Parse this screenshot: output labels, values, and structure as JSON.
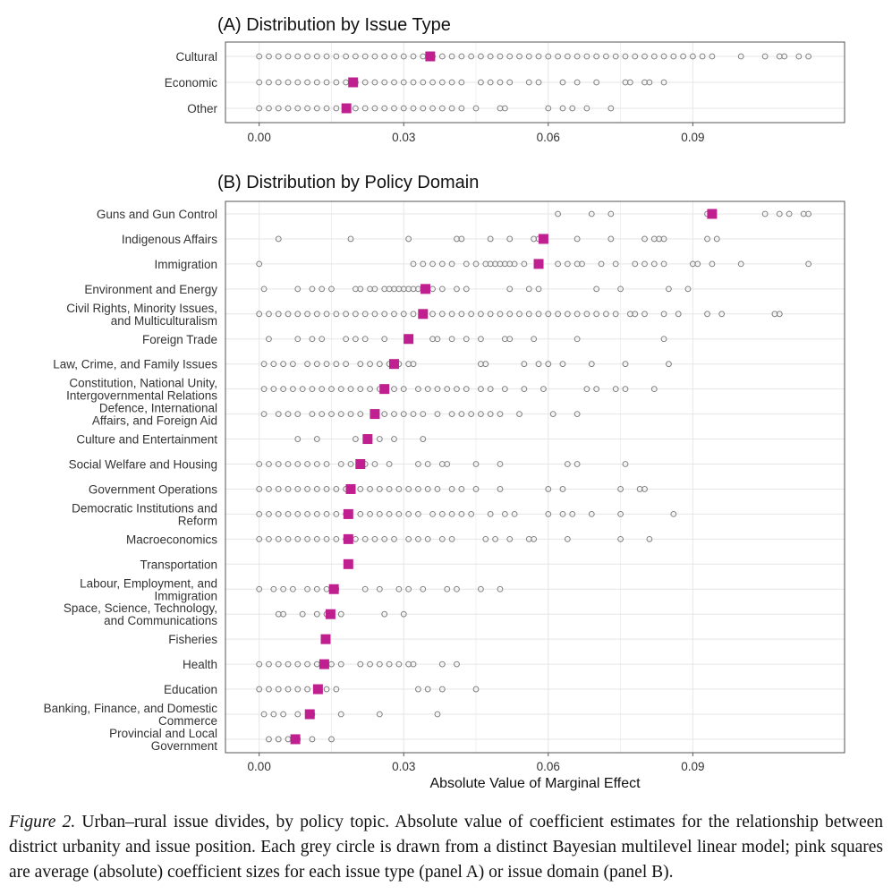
{
  "colors": {
    "mean_marker": "#c0208f",
    "point_stroke": "#7f7f7f",
    "panel_border": "#555555",
    "grid": "#e6e6e6",
    "text": "#333333"
  },
  "chart_data": [
    {
      "panel": "A",
      "type": "scatter",
      "title": "(A) Distribution by Issue Type",
      "xlabel": "",
      "ylabel": "",
      "xlim": [
        -0.007,
        0.1215
      ],
      "xticks": [
        "0.00",
        "0.03",
        "0.06",
        "0.09"
      ],
      "xtick_values": [
        0,
        0.03,
        0.06,
        0.09
      ],
      "grid": true,
      "categories": [
        "Cultural",
        "Economic",
        "Other"
      ],
      "series": [
        {
          "category": "Cultural",
          "mean": 0.0355,
          "points": [
            0.0,
            0.002,
            0.004,
            0.006,
            0.008,
            0.01,
            0.012,
            0.014,
            0.016,
            0.018,
            0.02,
            0.022,
            0.024,
            0.026,
            0.028,
            0.03,
            0.032,
            0.034,
            0.036,
            0.038,
            0.04,
            0.042,
            0.044,
            0.046,
            0.048,
            0.05,
            0.052,
            0.054,
            0.056,
            0.058,
            0.06,
            0.062,
            0.064,
            0.066,
            0.068,
            0.07,
            0.072,
            0.074,
            0.076,
            0.078,
            0.08,
            0.082,
            0.084,
            0.086,
            0.088,
            0.09,
            0.092,
            0.094,
            0.1,
            0.105,
            0.108,
            0.109,
            0.112,
            0.114
          ]
        },
        {
          "category": "Economic",
          "mean": 0.0195,
          "points": [
            0.0,
            0.002,
            0.004,
            0.006,
            0.008,
            0.01,
            0.012,
            0.014,
            0.016,
            0.018,
            0.02,
            0.022,
            0.024,
            0.026,
            0.028,
            0.03,
            0.032,
            0.034,
            0.036,
            0.038,
            0.04,
            0.042,
            0.046,
            0.048,
            0.05,
            0.052,
            0.056,
            0.058,
            0.063,
            0.066,
            0.07,
            0.076,
            0.077,
            0.08,
            0.081,
            0.084
          ]
        },
        {
          "category": "Other",
          "mean": 0.0181,
          "points": [
            0.0,
            0.002,
            0.004,
            0.006,
            0.008,
            0.01,
            0.012,
            0.014,
            0.016,
            0.02,
            0.022,
            0.024,
            0.026,
            0.028,
            0.03,
            0.032,
            0.034,
            0.036,
            0.038,
            0.04,
            0.042,
            0.045,
            0.05,
            0.051,
            0.06,
            0.063,
            0.065,
            0.068,
            0.073
          ]
        }
      ]
    },
    {
      "panel": "B",
      "type": "scatter",
      "title": "(B) Distribution by Policy Domain",
      "xlabel": "Absolute Value of Marginal Effect",
      "ylabel": "",
      "xlim": [
        -0.007,
        0.1215
      ],
      "xticks": [
        "0.00",
        "0.03",
        "0.06",
        "0.09"
      ],
      "xtick_values": [
        0,
        0.03,
        0.06,
        0.09
      ],
      "grid": true,
      "categories": [
        "Guns and Gun Control",
        "Indigenous Affairs",
        "Immigration",
        "Environment and Energy",
        "Civil Rights, Minority Issues,\nand Multiculturalism",
        "Foreign Trade",
        "Law, Crime, and Family Issues",
        "Constitution, National Unity,\nIntergovernmental Relations",
        "Defence, International\nAffairs, and Foreign Aid",
        "Culture and Entertainment",
        "Social Welfare and Housing",
        "Government Operations",
        "Democratic Institutions and\nReform",
        "Macroeconomics",
        "Transportation",
        "Labour, Employment, and\nImmigration",
        "Space, Science, Technology,\nand Communications",
        "Fisheries",
        "Health",
        "Education",
        "Banking, Finance, and Domestic\nCommerce",
        "Provincial and Local\nGovernment"
      ],
      "series": [
        {
          "category": "Guns and Gun Control",
          "mean": 0.094,
          "points": [
            0.062,
            0.069,
            0.073,
            0.093,
            0.094,
            0.105,
            0.108,
            0.11,
            0.113,
            0.114
          ]
        },
        {
          "category": "Indigenous Affairs",
          "mean": 0.059,
          "points": [
            0.004,
            0.019,
            0.031,
            0.041,
            0.042,
            0.048,
            0.052,
            0.057,
            0.058,
            0.066,
            0.073,
            0.08,
            0.082,
            0.083,
            0.084,
            0.093,
            0.095
          ]
        },
        {
          "category": "Immigration",
          "mean": 0.058,
          "points": [
            0.0,
            0.032,
            0.034,
            0.036,
            0.038,
            0.04,
            0.043,
            0.045,
            0.047,
            0.048,
            0.049,
            0.05,
            0.051,
            0.052,
            0.053,
            0.055,
            0.058,
            0.062,
            0.064,
            0.066,
            0.067,
            0.071,
            0.074,
            0.078,
            0.08,
            0.082,
            0.084,
            0.09,
            0.091,
            0.094,
            0.1,
            0.114
          ]
        },
        {
          "category": "Environment and Energy",
          "mean": 0.0345,
          "points": [
            0.001,
            0.008,
            0.011,
            0.013,
            0.015,
            0.02,
            0.021,
            0.023,
            0.024,
            0.026,
            0.027,
            0.028,
            0.029,
            0.03,
            0.031,
            0.032,
            0.033,
            0.034,
            0.036,
            0.038,
            0.041,
            0.043,
            0.052,
            0.056,
            0.058,
            0.07,
            0.075,
            0.085,
            0.089
          ]
        },
        {
          "category": "Civil Rights, Minority Issues,\nand Multiculturalism",
          "mean": 0.034,
          "points": [
            0.0,
            0.002,
            0.004,
            0.006,
            0.008,
            0.01,
            0.012,
            0.014,
            0.016,
            0.018,
            0.02,
            0.022,
            0.024,
            0.026,
            0.028,
            0.03,
            0.032,
            0.034,
            0.036,
            0.038,
            0.04,
            0.042,
            0.044,
            0.046,
            0.048,
            0.05,
            0.052,
            0.054,
            0.056,
            0.058,
            0.06,
            0.062,
            0.064,
            0.066,
            0.068,
            0.07,
            0.072,
            0.074,
            0.077,
            0.078,
            0.08,
            0.084,
            0.087,
            0.093,
            0.096,
            0.107,
            0.108
          ]
        },
        {
          "category": "Foreign Trade",
          "mean": 0.031,
          "points": [
            0.002,
            0.008,
            0.011,
            0.013,
            0.018,
            0.02,
            0.022,
            0.026,
            0.036,
            0.037,
            0.04,
            0.043,
            0.046,
            0.051,
            0.052,
            0.057,
            0.066,
            0.084
          ]
        },
        {
          "category": "Law, Crime, and Family Issues",
          "mean": 0.028,
          "points": [
            0.001,
            0.003,
            0.005,
            0.007,
            0.01,
            0.012,
            0.014,
            0.016,
            0.018,
            0.021,
            0.023,
            0.025,
            0.027,
            0.029,
            0.031,
            0.032,
            0.046,
            0.047,
            0.055,
            0.058,
            0.06,
            0.063,
            0.069,
            0.076,
            0.085
          ]
        },
        {
          "category": "Constitution, National Unity,\nIntergovernmental Relations",
          "mean": 0.026,
          "points": [
            0.001,
            0.003,
            0.005,
            0.007,
            0.009,
            0.011,
            0.013,
            0.015,
            0.017,
            0.019,
            0.021,
            0.023,
            0.025,
            0.028,
            0.03,
            0.033,
            0.035,
            0.037,
            0.039,
            0.041,
            0.043,
            0.046,
            0.048,
            0.051,
            0.055,
            0.059,
            0.068,
            0.07,
            0.074,
            0.076,
            0.082
          ]
        },
        {
          "category": "Defence, International\nAffairs, and Foreign Aid",
          "mean": 0.024,
          "points": [
            0.001,
            0.004,
            0.006,
            0.008,
            0.011,
            0.013,
            0.015,
            0.017,
            0.019,
            0.021,
            0.024,
            0.026,
            0.028,
            0.03,
            0.032,
            0.034,
            0.037,
            0.04,
            0.042,
            0.044,
            0.046,
            0.048,
            0.05,
            0.054,
            0.061,
            0.066
          ]
        },
        {
          "category": "Culture and Entertainment",
          "mean": 0.0225,
          "points": [
            0.008,
            0.012,
            0.02,
            0.025,
            0.028,
            0.034
          ]
        },
        {
          "category": "Social Welfare and Housing",
          "mean": 0.021,
          "points": [
            0.0,
            0.002,
            0.004,
            0.006,
            0.008,
            0.01,
            0.012,
            0.014,
            0.017,
            0.019,
            0.022,
            0.024,
            0.027,
            0.033,
            0.035,
            0.038,
            0.039,
            0.045,
            0.05,
            0.064,
            0.066,
            0.076
          ]
        },
        {
          "category": "Government Operations",
          "mean": 0.019,
          "points": [
            0.0,
            0.002,
            0.004,
            0.006,
            0.008,
            0.01,
            0.012,
            0.014,
            0.016,
            0.018,
            0.021,
            0.023,
            0.025,
            0.027,
            0.029,
            0.031,
            0.033,
            0.035,
            0.037,
            0.04,
            0.042,
            0.045,
            0.05,
            0.06,
            0.063,
            0.075,
            0.079,
            0.08
          ]
        },
        {
          "category": "Democratic Institutions and\nReform",
          "mean": 0.0185,
          "points": [
            0.0,
            0.002,
            0.004,
            0.006,
            0.008,
            0.01,
            0.012,
            0.014,
            0.016,
            0.018,
            0.021,
            0.023,
            0.025,
            0.027,
            0.029,
            0.031,
            0.033,
            0.036,
            0.038,
            0.04,
            0.042,
            0.044,
            0.048,
            0.051,
            0.053,
            0.06,
            0.063,
            0.065,
            0.069,
            0.075,
            0.086
          ]
        },
        {
          "category": "Macroeconomics",
          "mean": 0.0185,
          "points": [
            0.0,
            0.002,
            0.004,
            0.006,
            0.008,
            0.01,
            0.012,
            0.014,
            0.016,
            0.018,
            0.02,
            0.022,
            0.024,
            0.026,
            0.028,
            0.031,
            0.033,
            0.035,
            0.038,
            0.04,
            0.047,
            0.049,
            0.052,
            0.056,
            0.057,
            0.064,
            0.075,
            0.081
          ]
        },
        {
          "category": "Transportation",
          "mean": 0.0185,
          "points": []
        },
        {
          "category": "Labour, Employment, and\nImmigration",
          "mean": 0.0155,
          "points": [
            0.0,
            0.003,
            0.005,
            0.007,
            0.01,
            0.012,
            0.014,
            0.016,
            0.022,
            0.025,
            0.029,
            0.031,
            0.034,
            0.039,
            0.041,
            0.046,
            0.05
          ]
        },
        {
          "category": "Space, Science, Technology,\nand Communications",
          "mean": 0.0148,
          "points": [
            0.004,
            0.005,
            0.009,
            0.012,
            0.014,
            0.017,
            0.026,
            0.03
          ]
        },
        {
          "category": "Fisheries",
          "mean": 0.0138,
          "points": []
        },
        {
          "category": "Health",
          "mean": 0.0135,
          "points": [
            0.0,
            0.002,
            0.004,
            0.006,
            0.008,
            0.01,
            0.012,
            0.015,
            0.017,
            0.021,
            0.023,
            0.025,
            0.027,
            0.029,
            0.031,
            0.032,
            0.038,
            0.041
          ]
        },
        {
          "category": "Education",
          "mean": 0.0122,
          "points": [
            0.0,
            0.002,
            0.004,
            0.006,
            0.008,
            0.01,
            0.012,
            0.014,
            0.016,
            0.033,
            0.035,
            0.038,
            0.045
          ]
        },
        {
          "category": "Banking, Finance, and Domestic\nCommerce",
          "mean": 0.0105,
          "points": [
            0.001,
            0.003,
            0.005,
            0.008,
            0.011,
            0.017,
            0.025,
            0.037
          ]
        },
        {
          "category": "Provincial and Local\nGovernment",
          "mean": 0.0075,
          "points": [
            0.002,
            0.004,
            0.006,
            0.008,
            0.011,
            0.015
          ]
        }
      ]
    }
  ],
  "caption": {
    "lead": "Figure 2.",
    "text": "Urban–rural issue divides, by policy topic. Absolute value of coefficient estimates for the relationship between district urbanity and issue position. Each grey circle is drawn from a distinct Bayesian multilevel linear model; pink squares are average (absolute) coefficient sizes for each issue type (panel A) or issue domain (panel B)."
  }
}
